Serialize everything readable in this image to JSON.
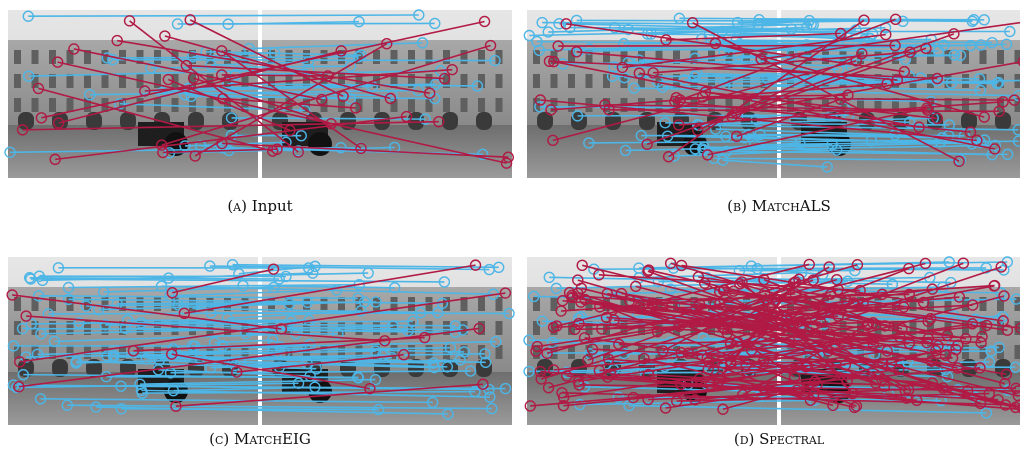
{
  "panels": [
    {
      "label": "(a)",
      "name": "Input"
    },
    {
      "label": "(b)",
      "name": "MatchALS"
    },
    {
      "label": "(c)",
      "name": "MatchEIG"
    },
    {
      "label": "(d)",
      "name": "Spectral"
    }
  ]
}
